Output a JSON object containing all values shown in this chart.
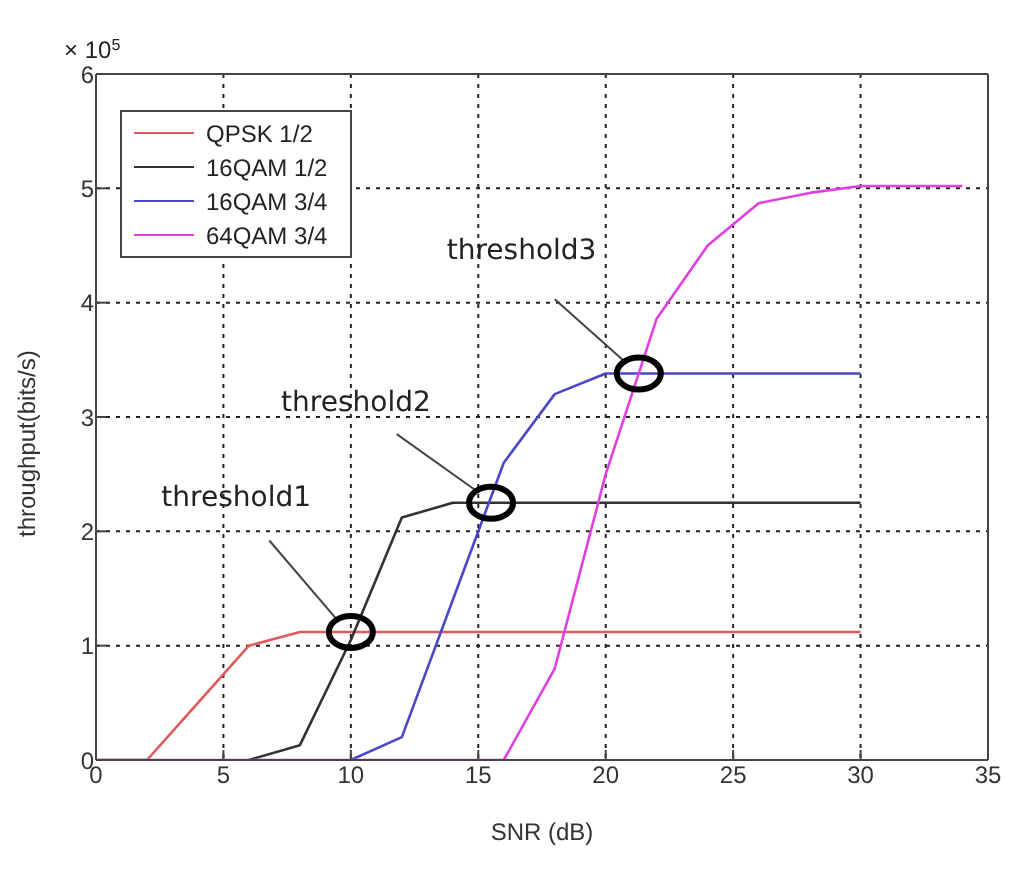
{
  "chart_data": {
    "type": "line",
    "xlabel": "SNR (dB)",
    "ylabel": "throughput(bits/s)",
    "xlim": [
      0,
      35
    ],
    "xticks": [
      0,
      5,
      10,
      15,
      20,
      25,
      30,
      35
    ],
    "ylim": [
      0,
      6
    ],
    "yticks": [
      0,
      1,
      2,
      3,
      4,
      5,
      6
    ],
    "grid": true,
    "legend": "top left",
    "marker": "none",
    "line_style": "solid",
    "series": [
      {
        "name": "QPSK 1/2",
        "color": "#e05a5a",
        "x": [
          0,
          2,
          4,
          6,
          8,
          10,
          15,
          20,
          25,
          30
        ],
        "values": [
          0,
          0,
          0.5,
          1.0,
          1.12,
          1.12,
          1.12,
          1.12,
          1.12,
          1.12
        ]
      },
      {
        "name": "16QAM 1/2",
        "color": "#333333",
        "x": [
          6,
          8,
          10,
          12,
          14,
          16,
          20,
          25,
          30
        ],
        "values": [
          0,
          0.13,
          1.05,
          2.12,
          2.25,
          2.25,
          2.25,
          2.25,
          2.25
        ]
      },
      {
        "name": "16QAM 3/4",
        "color": "#4848c8",
        "x": [
          10,
          12,
          14,
          16,
          18,
          20,
          22,
          25,
          30
        ],
        "values": [
          0,
          0.2,
          1.4,
          2.6,
          3.2,
          3.38,
          3.38,
          3.38,
          3.38
        ]
      },
      {
        "name": "64QAM 3/4",
        "color": "#e040e0",
        "x": [
          0,
          16,
          18,
          20,
          22,
          24,
          26,
          28,
          30,
          34
        ],
        "values": [
          0,
          0,
          0.8,
          2.5,
          3.86,
          4.5,
          4.87,
          4.96,
          5.02,
          5.02
        ]
      }
    ],
    "annotations": [
      "× 10$^{5}$",
      {
        "text": "threshold1",
        "x": 10,
        "y": 1.12
      },
      {
        "text": "threshold2",
        "x": 15.5,
        "y": 2.25
      },
      {
        "text": "threshold3",
        "x": 21.3,
        "y": 3.38
      }
    ]
  }
}
